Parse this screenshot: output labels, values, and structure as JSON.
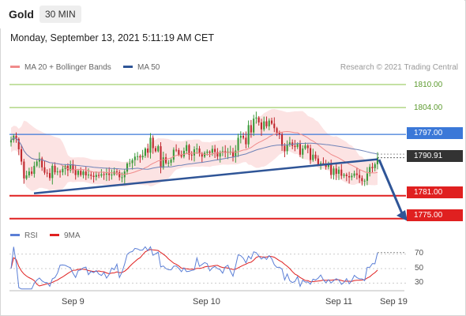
{
  "header": {
    "symbol": "Gold",
    "timeframe": "30 MIN",
    "datetime": "Monday, September 13, 2021 5:11:19 AM CET"
  },
  "legend": {
    "bollinger": {
      "label": "MA 20 + Bollinger Bands",
      "color": "#f08b8b"
    },
    "ma50": {
      "label": "MA 50",
      "color": "#2f5597"
    },
    "credit": "Research © 2021 Trading Central"
  },
  "price_levels": {
    "r3": "1810.00",
    "r2": "1804.00",
    "r1": "1797.00",
    "last": "1790.91",
    "s1": "1781.00",
    "s2": "1775.00"
  },
  "rsi": {
    "rsi_label": "RSI",
    "ma_label": "9MA",
    "rsi_color": "#5b7fd6",
    "ma_color": "#e02020",
    "levels": [
      "70",
      "50",
      "30"
    ]
  },
  "xaxis": [
    "Sep 9",
    "Sep 10",
    "Sep 11",
    "Sep 19"
  ],
  "colors": {
    "up": "#3a9a3a",
    "down": "#c0282e",
    "resistance_green": "#8bc34a",
    "resistance_blue": "#3b78d8",
    "support_red": "#e02020",
    "trendline": "#2f5597",
    "arrow": "#2f5597"
  },
  "chart_data": {
    "type": "candlestick",
    "series_closes": [
      1795.5,
      1796.6,
      1795.8,
      1793.1,
      1789.9,
      1785.5,
      1786.3,
      1787.3,
      1786.7,
      1788.8,
      1789.9,
      1790.7,
      1788.4,
      1787.0,
      1786.9,
      1785.6,
      1788.8,
      1787.1,
      1787.3,
      1787.1,
      1788.0,
      1788.8,
      1787.6,
      1789.2,
      1787.7,
      1786.4,
      1787.5,
      1786.4,
      1787.3,
      1786.3,
      1786.5,
      1786.2,
      1785.9,
      1786.4,
      1786.2,
      1786.6,
      1786.5,
      1786.8,
      1786.4,
      1786.5,
      1787.3,
      1787.1,
      1785.8,
      1785.8,
      1787.3,
      1789.4,
      1789.5,
      1790.3,
      1791.2,
      1791.3,
      1791.0,
      1791.4,
      1793.3,
      1792.2,
      1796.1,
      1793.4,
      1792.6,
      1793.9,
      1788.3,
      1791.0,
      1789.5,
      1789.6,
      1790.4,
      1793.0,
      1792.9,
      1791.6,
      1791.2,
      1792.7,
      1794.2,
      1791.7,
      1791.5,
      1793.1,
      1793.3,
      1792.0,
      1791.2,
      1792.2,
      1792.5,
      1792.2,
      1793.2,
      1792.4,
      1791.2,
      1792.3,
      1792.6,
      1792.2,
      1792.5,
      1792.5,
      1791.2,
      1792.8,
      1796.1,
      1796.6,
      1796.1,
      1794.4,
      1799.4,
      1797.5,
      1801.1,
      1801.4,
      1800.1,
      1798.3,
      1800.4,
      1799.1,
      1800.6,
      1799.8,
      1798.6,
      1797.4,
      1797.0,
      1794.0,
      1792.6,
      1794.3,
      1794.9,
      1794.0,
      1793.7,
      1794.5,
      1791.7,
      1793.3,
      1794.1,
      1793.4,
      1790.3,
      1791.7,
      1790.7,
      1789.1,
      1789.5,
      1789.3,
      1788.5,
      1789.1,
      1786.4,
      1788.1,
      1786.7,
      1787.8,
      1786.2,
      1786.5,
      1786.1,
      1785.8,
      1786.2,
      1786.8,
      1786.4,
      1785.6,
      1784.8,
      1784.9,
      1786.8,
      1788.5,
      1788.2,
      1789.2,
      1790.91
    ],
    "ylim": [
      1772,
      1813
    ],
    "resistance_levels": [
      1810.0,
      1804.0,
      1797.0
    ],
    "support_levels": [
      1781.0,
      1775.0
    ],
    "last_price": 1790.91,
    "rsi_levels": [
      70,
      50,
      30
    ]
  }
}
